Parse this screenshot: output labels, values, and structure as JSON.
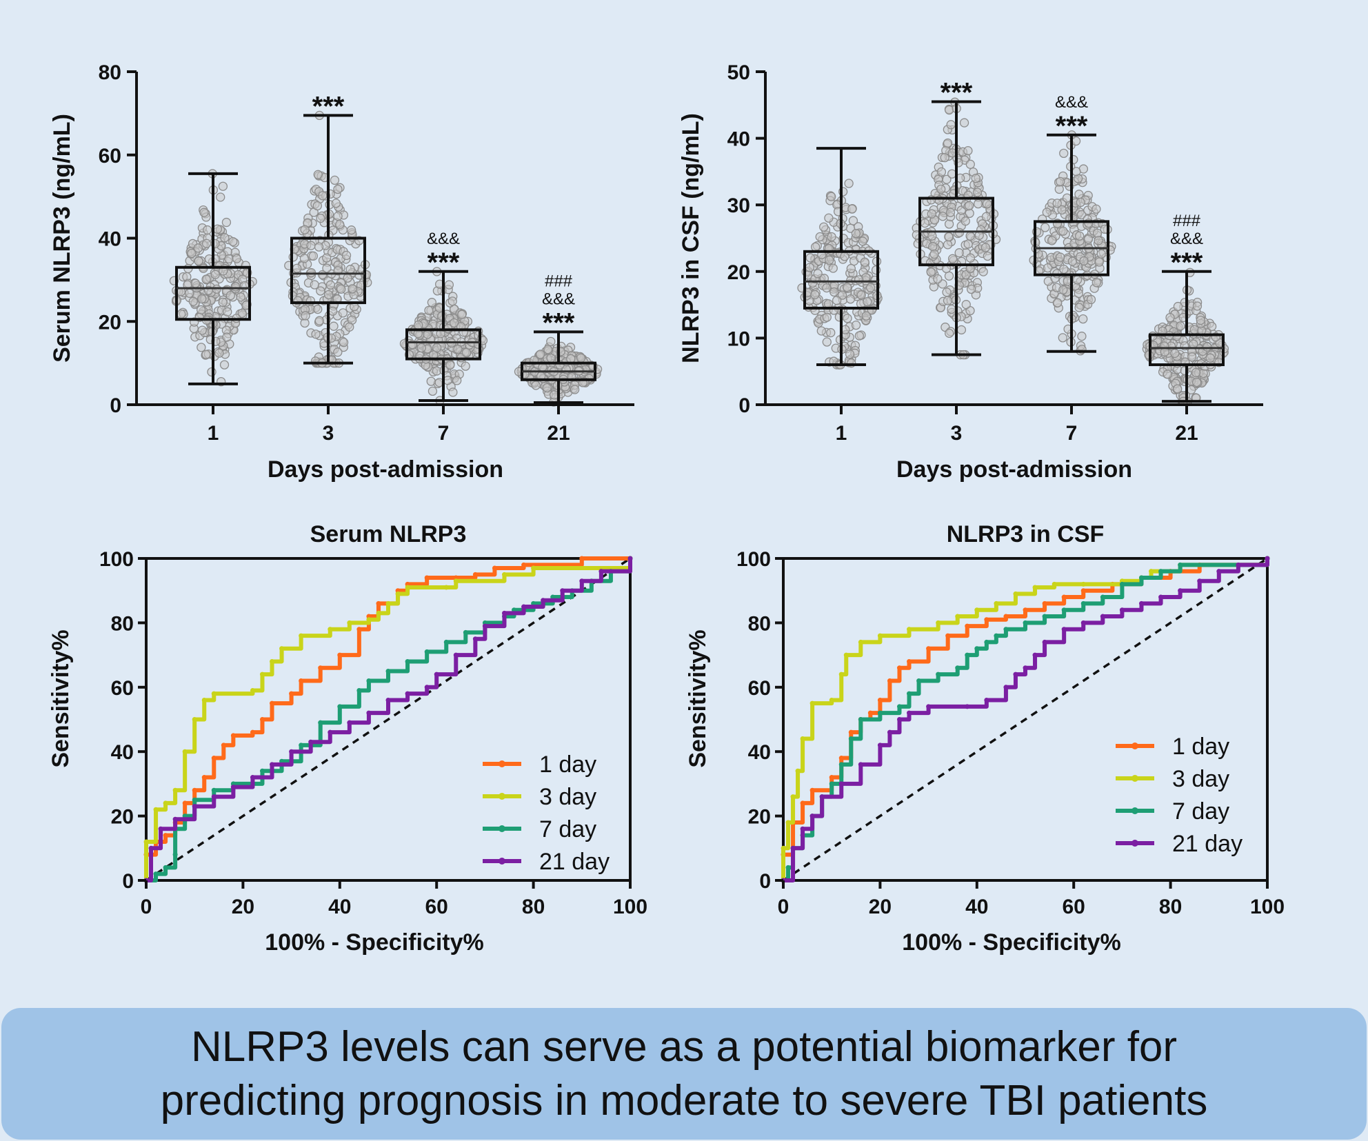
{
  "chart_data": [
    {
      "type": "box",
      "panel": "serum-box",
      "ylabel": "Serum NLRP3 (ng/mL)",
      "xlabel": "Days post-admission",
      "categories": [
        "1",
        "3",
        "7",
        "21"
      ],
      "ylim": [
        0,
        80
      ],
      "yticks": [
        0,
        20,
        40,
        60,
        80
      ],
      "boxes": [
        {
          "min": 5,
          "q1": 20.5,
          "median": 28,
          "q3": 33,
          "max": 55.5,
          "marks": []
        },
        {
          "min": 10,
          "q1": 24.5,
          "median": 31.5,
          "q3": 40,
          "max": 69.5,
          "marks": [
            "***"
          ]
        },
        {
          "min": 1,
          "q1": 11,
          "median": 15,
          "q3": 18,
          "max": 32,
          "marks": [
            "&&&",
            "***"
          ]
        },
        {
          "min": 0.5,
          "q1": 6,
          "median": 8,
          "q3": 10,
          "max": 17.5,
          "marks": [
            "###",
            "&&&",
            "***"
          ]
        }
      ]
    },
    {
      "type": "box",
      "panel": "csf-box",
      "ylabel": "NLRP3 in CSF (ng/mL)",
      "xlabel": "Days post-admission",
      "categories": [
        "1",
        "3",
        "7",
        "21"
      ],
      "ylim": [
        0,
        50
      ],
      "yticks": [
        0,
        10,
        20,
        30,
        40,
        50
      ],
      "boxes": [
        {
          "min": 6,
          "q1": 14.5,
          "median": 18.5,
          "q3": 23,
          "max": 38.5,
          "marks": []
        },
        {
          "min": 7.5,
          "q1": 21,
          "median": 26,
          "q3": 31,
          "max": 45.5,
          "marks": [
            "***"
          ]
        },
        {
          "min": 8,
          "q1": 19.5,
          "median": 23.5,
          "q3": 27.5,
          "max": 40.5,
          "marks": [
            "&&&",
            "***"
          ]
        },
        {
          "min": 0.5,
          "q1": 6,
          "median": 8.5,
          "q3": 10.5,
          "max": 20,
          "marks": [
            "###",
            "&&&",
            "***"
          ]
        }
      ]
    },
    {
      "type": "line",
      "panel": "serum-roc",
      "title": "Serum NLRP3",
      "xlabel": "100% - Specificity%",
      "ylabel": "Sensitivity%",
      "xlim": [
        0,
        100
      ],
      "ylim": [
        0,
        100
      ],
      "ticks": [
        0,
        20,
        40,
        60,
        80,
        100
      ],
      "legend_position": "bottom-right",
      "series": [
        {
          "name": "1 day",
          "color": "#ff6a1a",
          "points": [
            [
              0,
              0
            ],
            [
              0,
              8
            ],
            [
              2,
              12
            ],
            [
              4,
              14
            ],
            [
              6,
              18
            ],
            [
              8,
              24
            ],
            [
              10,
              28
            ],
            [
              12,
              32
            ],
            [
              14,
              38
            ],
            [
              16,
              42
            ],
            [
              18,
              45
            ],
            [
              22,
              46
            ],
            [
              24,
              50
            ],
            [
              26,
              55
            ],
            [
              30,
              58
            ],
            [
              32,
              62
            ],
            [
              36,
              66
            ],
            [
              40,
              70
            ],
            [
              44,
              78
            ],
            [
              46,
              82
            ],
            [
              48,
              86
            ],
            [
              52,
              90
            ],
            [
              54,
              92
            ],
            [
              58,
              94
            ],
            [
              64,
              94
            ],
            [
              68,
              95
            ],
            [
              72,
              97
            ],
            [
              78,
              98
            ],
            [
              90,
              100
            ],
            [
              100,
              100
            ]
          ]
        },
        {
          "name": "3 day",
          "color": "#c9d41a",
          "points": [
            [
              0,
              0
            ],
            [
              0,
              12
            ],
            [
              2,
              22
            ],
            [
              4,
              24
            ],
            [
              6,
              28
            ],
            [
              8,
              40
            ],
            [
              10,
              50
            ],
            [
              12,
              56
            ],
            [
              14,
              58
            ],
            [
              22,
              59
            ],
            [
              24,
              64
            ],
            [
              26,
              68
            ],
            [
              28,
              72
            ],
            [
              32,
              76
            ],
            [
              38,
              78
            ],
            [
              42,
              80
            ],
            [
              46,
              81
            ],
            [
              48,
              83
            ],
            [
              50,
              86
            ],
            [
              52,
              89
            ],
            [
              54,
              91
            ],
            [
              62,
              91
            ],
            [
              64,
              93
            ],
            [
              74,
              95
            ],
            [
              80,
              97
            ],
            [
              100,
              100
            ]
          ]
        },
        {
          "name": "7 day",
          "color": "#1e9e74",
          "points": [
            [
              0,
              0
            ],
            [
              2,
              2
            ],
            [
              4,
              4
            ],
            [
              6,
              8
            ],
            [
              6,
              16
            ],
            [
              8,
              20
            ],
            [
              10,
              25
            ],
            [
              14,
              28
            ],
            [
              18,
              30
            ],
            [
              24,
              34
            ],
            [
              28,
              37
            ],
            [
              32,
              42
            ],
            [
              36,
              49
            ],
            [
              40,
              54
            ],
            [
              44,
              59
            ],
            [
              46,
              62
            ],
            [
              50,
              65
            ],
            [
              54,
              68
            ],
            [
              58,
              71
            ],
            [
              62,
              74
            ],
            [
              66,
              77
            ],
            [
              70,
              80
            ],
            [
              74,
              82
            ],
            [
              76,
              84
            ],
            [
              80,
              86
            ],
            [
              84,
              88
            ],
            [
              88,
              90
            ],
            [
              92,
              93
            ],
            [
              96,
              96
            ],
            [
              100,
              100
            ]
          ]
        },
        {
          "name": "21 day",
          "color": "#7b1fa2",
          "points": [
            [
              0,
              0
            ],
            [
              1,
              10
            ],
            [
              3,
              16
            ],
            [
              6,
              19
            ],
            [
              10,
              23
            ],
            [
              14,
              26
            ],
            [
              18,
              29
            ],
            [
              22,
              32
            ],
            [
              26,
              36
            ],
            [
              30,
              40
            ],
            [
              34,
              43
            ],
            [
              38,
              46
            ],
            [
              42,
              49
            ],
            [
              46,
              52
            ],
            [
              50,
              56
            ],
            [
              54,
              58
            ],
            [
              58,
              60
            ],
            [
              60,
              64
            ],
            [
              64,
              70
            ],
            [
              68,
              75
            ],
            [
              70,
              79
            ],
            [
              74,
              83
            ],
            [
              78,
              85
            ],
            [
              82,
              87
            ],
            [
              86,
              90
            ],
            [
              90,
              93
            ],
            [
              94,
              96
            ],
            [
              100,
              100
            ]
          ]
        }
      ]
    },
    {
      "type": "line",
      "panel": "csf-roc",
      "title": "NLRP3 in CSF",
      "xlabel": "100% - Specificity%",
      "ylabel": "Sensitivity%",
      "xlim": [
        0,
        100
      ],
      "ylim": [
        0,
        100
      ],
      "ticks": [
        0,
        20,
        40,
        60,
        80,
        100
      ],
      "legend_position": "bottom-right",
      "series": [
        {
          "name": "1 day",
          "color": "#ff6a1a",
          "points": [
            [
              0,
              0
            ],
            [
              0,
              8
            ],
            [
              2,
              18
            ],
            [
              4,
              24
            ],
            [
              6,
              28
            ],
            [
              10,
              32
            ],
            [
              12,
              38
            ],
            [
              14,
              46
            ],
            [
              16,
              50
            ],
            [
              18,
              52
            ],
            [
              20,
              56
            ],
            [
              22,
              62
            ],
            [
              24,
              66
            ],
            [
              26,
              68
            ],
            [
              30,
              72
            ],
            [
              34,
              76
            ],
            [
              38,
              79
            ],
            [
              42,
              81
            ],
            [
              46,
              82
            ],
            [
              50,
              84
            ],
            [
              54,
              86
            ],
            [
              58,
              88
            ],
            [
              62,
              90
            ],
            [
              68,
              92
            ],
            [
              74,
              94
            ],
            [
              80,
              96
            ],
            [
              86,
              98
            ],
            [
              100,
              100
            ]
          ]
        },
        {
          "name": "3 day",
          "color": "#c9d41a",
          "points": [
            [
              0,
              0
            ],
            [
              0,
              10
            ],
            [
              1,
              18
            ],
            [
              2,
              26
            ],
            [
              3,
              34
            ],
            [
              4,
              44
            ],
            [
              6,
              55
            ],
            [
              10,
              56
            ],
            [
              12,
              64
            ],
            [
              13,
              70
            ],
            [
              16,
              74
            ],
            [
              20,
              76
            ],
            [
              26,
              78
            ],
            [
              32,
              80
            ],
            [
              36,
              82
            ],
            [
              40,
              84
            ],
            [
              44,
              86
            ],
            [
              48,
              89
            ],
            [
              52,
              91
            ],
            [
              56,
              92
            ],
            [
              62,
              92
            ],
            [
              70,
              93
            ],
            [
              74,
              94
            ],
            [
              76,
              96
            ],
            [
              82,
              98
            ],
            [
              100,
              100
            ]
          ]
        },
        {
          "name": "7 day",
          "color": "#1e9e74",
          "points": [
            [
              0,
              0
            ],
            [
              1,
              4
            ],
            [
              2,
              10
            ],
            [
              4,
              14
            ],
            [
              6,
              20
            ],
            [
              8,
              26
            ],
            [
              10,
              30
            ],
            [
              12,
              36
            ],
            [
              14,
              44
            ],
            [
              16,
              50
            ],
            [
              20,
              52
            ],
            [
              24,
              54
            ],
            [
              26,
              58
            ],
            [
              28,
              62
            ],
            [
              32,
              64
            ],
            [
              36,
              66
            ],
            [
              38,
              70
            ],
            [
              40,
              72
            ],
            [
              42,
              74
            ],
            [
              44,
              76
            ],
            [
              46,
              78
            ],
            [
              50,
              80
            ],
            [
              54,
              82
            ],
            [
              58,
              84
            ],
            [
              62,
              86
            ],
            [
              66,
              88
            ],
            [
              70,
              92
            ],
            [
              74,
              94
            ],
            [
              78,
              96
            ],
            [
              82,
              98
            ],
            [
              100,
              100
            ]
          ]
        },
        {
          "name": "21 day",
          "color": "#7b1fa2",
          "points": [
            [
              0,
              0
            ],
            [
              2,
              10
            ],
            [
              4,
              16
            ],
            [
              6,
              20
            ],
            [
              8,
              26
            ],
            [
              12,
              30
            ],
            [
              16,
              36
            ],
            [
              20,
              42
            ],
            [
              22,
              46
            ],
            [
              24,
              50
            ],
            [
              26,
              52
            ],
            [
              30,
              54
            ],
            [
              38,
              54
            ],
            [
              42,
              56
            ],
            [
              46,
              60
            ],
            [
              48,
              64
            ],
            [
              50,
              66
            ],
            [
              52,
              70
            ],
            [
              54,
              74
            ],
            [
              58,
              78
            ],
            [
              62,
              80
            ],
            [
              66,
              82
            ],
            [
              70,
              84
            ],
            [
              74,
              86
            ],
            [
              78,
              88
            ],
            [
              82,
              90
            ],
            [
              86,
              93
            ],
            [
              90,
              96
            ],
            [
              94,
              98
            ],
            [
              100,
              100
            ]
          ]
        }
      ]
    }
  ],
  "conclusion": {
    "line1": "NLRP3 levels can serve as a potential biomarker for",
    "line2": "predicting prognosis in moderate to severe TBI patients"
  }
}
